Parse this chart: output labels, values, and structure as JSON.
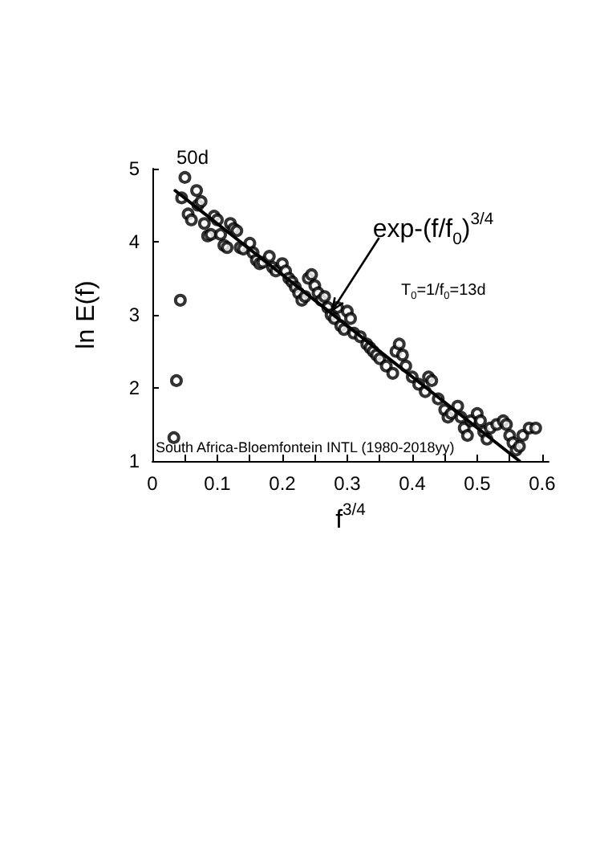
{
  "chart_data": {
    "type": "scatter",
    "xlabel": "f$^{3/4}$",
    "ylabel": "ln E(f)",
    "xlim": [
      0,
      0.61
    ],
    "ylim": [
      1,
      5
    ],
    "xticks": [
      0,
      {
        "value": 0.05,
        "label": null
      },
      0.1,
      {
        "value": 0.15,
        "label": null
      },
      0.2,
      {
        "value": 0.25,
        "label": null
      },
      0.3,
      {
        "value": 0.35,
        "label": null
      },
      0.4,
      {
        "value": 0.45,
        "label": null
      },
      0.5,
      {
        "value": 0.55,
        "label": null
      },
      0.6
    ],
    "yticks": [
      1,
      2,
      3,
      4,
      5
    ],
    "grid": false,
    "marker": "circle",
    "annotations": [
      "50d",
      {
        "text": "exp-(f/f$_{0}$)$^{3/4}$",
        "x": 0.27,
        "y": 3.0
      },
      "T$_{0}$=1/f$_{0}$=13d",
      "South Africa-Bloemfontein INTL (1980-2018yy)"
    ],
    "series": [
      {
        "type": "scatter",
        "color": "#000000",
        "x": [
          0.033,
          0.037,
          0.043,
          0.045,
          0.05,
          0.055,
          0.06,
          0.068,
          0.07,
          0.075,
          0.08,
          0.085,
          0.09,
          0.095,
          0.1,
          0.105,
          0.11,
          0.115,
          0.12,
          0.125,
          0.13,
          0.135,
          0.14,
          0.15,
          0.155,
          0.16,
          0.165,
          0.17,
          0.18,
          0.185,
          0.19,
          0.2,
          0.205,
          0.21,
          0.215,
          0.22,
          0.225,
          0.23,
          0.235,
          0.24,
          0.245,
          0.25,
          0.255,
          0.26,
          0.265,
          0.27,
          0.275,
          0.28,
          0.285,
          0.29,
          0.295,
          0.3,
          0.305,
          0.31,
          0.32,
          0.33,
          0.335,
          0.34,
          0.345,
          0.35,
          0.36,
          0.37,
          0.375,
          0.38,
          0.385,
          0.39,
          0.4,
          0.41,
          0.42,
          0.425,
          0.43,
          0.44,
          0.45,
          0.455,
          0.46,
          0.47,
          0.475,
          0.48,
          0.485,
          0.49,
          0.5,
          0.505,
          0.51,
          0.515,
          0.52,
          0.53,
          0.54,
          0.545,
          0.55,
          0.555,
          0.56,
          0.565,
          0.57,
          0.58,
          0.59
        ],
        "values": [
          1.32,
          2.1,
          3.2,
          4.6,
          4.88,
          4.38,
          4.3,
          4.7,
          4.5,
          4.55,
          4.25,
          4.08,
          4.1,
          4.35,
          4.3,
          4.1,
          3.95,
          3.92,
          4.25,
          4.18,
          4.15,
          3.92,
          3.9,
          3.98,
          3.85,
          3.75,
          3.7,
          3.72,
          3.8,
          3.65,
          3.6,
          3.7,
          3.6,
          3.5,
          3.45,
          3.38,
          3.3,
          3.2,
          3.25,
          3.5,
          3.55,
          3.4,
          3.3,
          3.2,
          3.25,
          3.1,
          3.0,
          2.95,
          3.1,
          2.85,
          2.8,
          3.05,
          2.95,
          2.75,
          2.7,
          2.6,
          2.55,
          2.5,
          2.45,
          2.4,
          2.3,
          2.2,
          2.5,
          2.6,
          2.45,
          2.3,
          2.15,
          2.05,
          1.95,
          2.15,
          2.1,
          1.85,
          1.7,
          1.6,
          1.65,
          1.75,
          1.6,
          1.45,
          1.35,
          1.55,
          1.65,
          1.55,
          1.4,
          1.3,
          1.45,
          1.5,
          1.55,
          1.5,
          1.35,
          1.25,
          1.15,
          1.2,
          1.35,
          1.45,
          1.45
        ]
      },
      {
        "type": "line",
        "color": "#000000",
        "marker": "none",
        "line_style": "solid",
        "x": [
          0.035,
          0.565
        ],
        "values": [
          4.7,
          1.0
        ]
      }
    ]
  }
}
